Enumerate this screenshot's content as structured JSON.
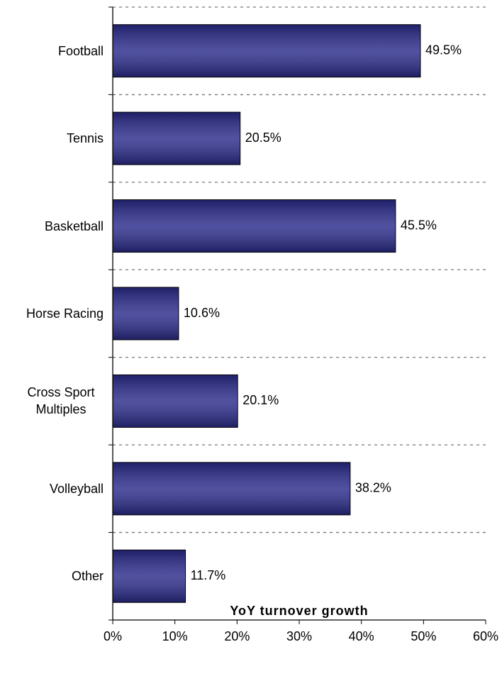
{
  "chart_data": {
    "type": "bar",
    "orientation": "horizontal",
    "x_label": "YoY turnover growth",
    "categories": [
      "Football",
      "Tennis",
      "Basketball",
      "Horse Racing",
      "Cross Sport Multiples",
      "Volleyball",
      "Other"
    ],
    "values": [
      49.5,
      20.5,
      45.5,
      10.6,
      20.1,
      38.2,
      11.7
    ],
    "value_labels": [
      "49.5%",
      "20.5%",
      "45.5%",
      "10.6%",
      "20.1%",
      "38.2%",
      "11.7%"
    ],
    "color": "#2b2b8c",
    "xlim": [
      0,
      60
    ],
    "xticks": [
      {
        "value": 0,
        "label": "0%"
      },
      {
        "value": 10,
        "label": "10%"
      },
      {
        "value": 20,
        "label": "20%"
      },
      {
        "value": 30,
        "label": "30%"
      },
      {
        "value": 40,
        "label": "40%"
      },
      {
        "value": 50,
        "label": "50%"
      },
      {
        "value": 60,
        "label": "60%"
      }
    ],
    "grid": true
  }
}
